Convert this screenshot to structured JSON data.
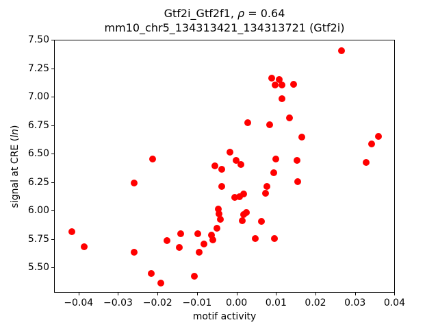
{
  "figure": {
    "title_line1": {
      "pre": "Gtf2i_Gtf2f1, ",
      "italic": "ρ",
      "post": " = 0.64"
    },
    "title_line2": "mm10_chr5_134313421_134313721 (Gtf2i)",
    "xlabel": "motif activity",
    "ylabel": {
      "pre": "signal at CRE (",
      "italic": "ln",
      "post": ")"
    }
  },
  "chart_data": {
    "type": "scatter",
    "title": "Gtf2i_Gtf2f1, ρ = 0.64",
    "subtitle": "mm10_chr5_134313421_134313721 (Gtf2i)",
    "xlabel": "motif activity",
    "ylabel": "signal at CRE (ln)",
    "marker_color": "#ff0000",
    "grid": false,
    "legend": "none",
    "xlim": [
      -0.0462,
      0.0401
    ],
    "ylim": [
      5.278,
      7.503
    ],
    "xticks": [
      -0.04,
      -0.03,
      -0.02,
      -0.01,
      0.0,
      0.01,
      0.02,
      0.03,
      0.04
    ],
    "xtick_labels": [
      "−0.04",
      "−0.03",
      "−0.02",
      "−0.01",
      "0.00",
      "0.01",
      "0.02",
      "0.03",
      "0.04"
    ],
    "yticks": [
      5.5,
      5.75,
      6.0,
      6.25,
      6.5,
      6.75,
      7.0,
      7.25,
      7.5
    ],
    "ytick_labels": [
      "5.50",
      "5.75",
      "6.00",
      "6.25",
      "6.50",
      "6.75",
      "7.00",
      "7.25",
      "7.50"
    ],
    "points": [
      [
        -0.0215,
        6.46
      ],
      [
        0.0264,
        7.41
      ],
      [
        0.0087,
        7.17
      ],
      [
        0.0107,
        7.16
      ],
      [
        0.0096,
        7.11
      ],
      [
        0.0114,
        7.11
      ],
      [
        0.0143,
        7.12
      ],
      [
        0.0113,
        6.99
      ],
      [
        0.0132,
        6.82
      ],
      [
        0.0026,
        6.78
      ],
      [
        0.0082,
        6.76
      ],
      [
        0.0163,
        6.65
      ],
      [
        0.0358,
        6.66
      ],
      [
        0.0341,
        6.59
      ],
      [
        -0.0019,
        6.52
      ],
      [
        -0.0003,
        6.45
      ],
      [
        0.0009,
        6.41
      ],
      [
        0.0097,
        6.46
      ],
      [
        0.0151,
        6.45
      ],
      [
        0.0327,
        6.43
      ],
      [
        0.0092,
        6.34
      ],
      [
        -0.0056,
        6.4
      ],
      [
        -0.004,
        6.37
      ],
      [
        -0.0261,
        6.25
      ],
      [
        -0.0039,
        6.22
      ],
      [
        -0.0047,
        6.02
      ],
      [
        -0.0046,
        5.98
      ],
      [
        -0.0043,
        5.93
      ],
      [
        -0.0419,
        5.82
      ],
      [
        -0.0051,
        5.85
      ],
      [
        -0.01,
        5.8
      ],
      [
        -0.0144,
        5.8
      ],
      [
        -0.0066,
        5.79
      ],
      [
        -0.0062,
        5.75
      ],
      [
        -0.0388,
        5.69
      ],
      [
        -0.0178,
        5.74
      ],
      [
        -0.0147,
        5.68
      ],
      [
        -0.0084,
        5.71
      ],
      [
        -0.0096,
        5.64
      ],
      [
        -0.0261,
        5.64
      ],
      [
        -0.0217,
        5.45
      ],
      [
        -0.0109,
        5.43
      ],
      [
        -0.0193,
        5.37
      ],
      [
        0.0154,
        6.26
      ],
      [
        0.0075,
        6.22
      ],
      [
        0.0071,
        6.16
      ],
      [
        -0.0007,
        6.12
      ],
      [
        0.0006,
        6.13
      ],
      [
        0.0016,
        6.15
      ],
      [
        0.0024,
        5.99
      ],
      [
        0.0016,
        5.97
      ],
      [
        0.0012,
        5.92
      ],
      [
        0.0062,
        5.91
      ],
      [
        0.0045,
        5.76
      ],
      [
        0.0094,
        5.76
      ]
    ]
  }
}
